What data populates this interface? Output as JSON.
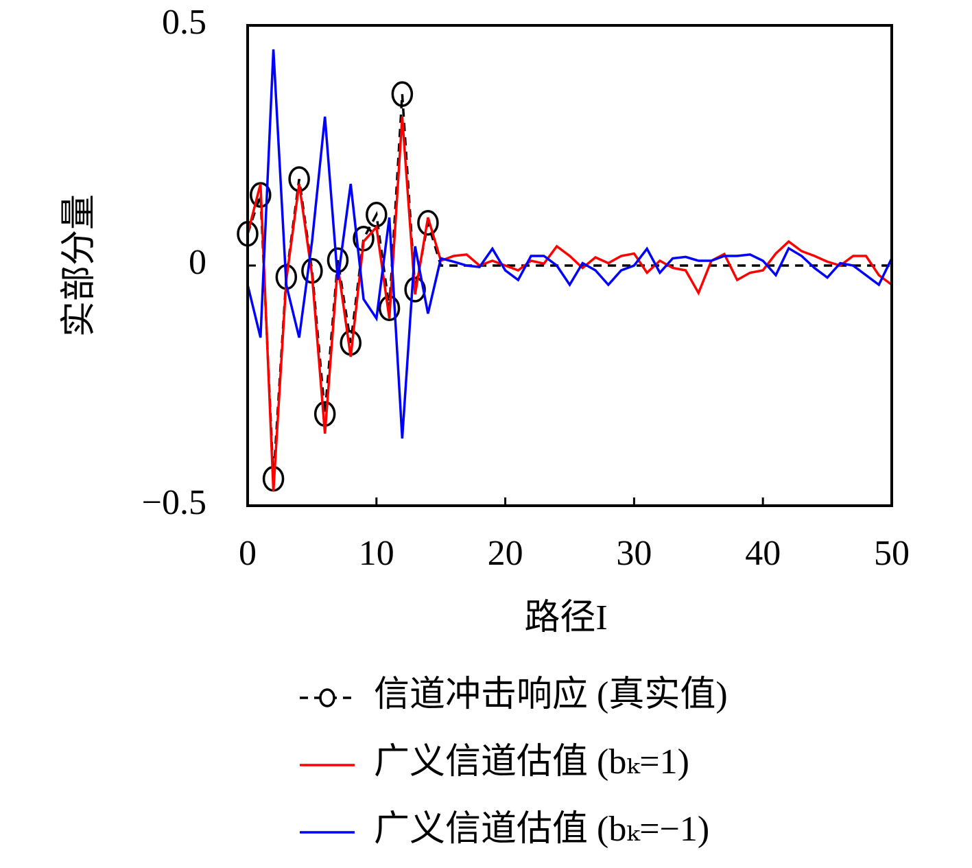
{
  "chart_data": {
    "type": "line",
    "xlabel": "路径I",
    "ylabel": "实部分量",
    "x": [
      0,
      1,
      2,
      3,
      4,
      5,
      6,
      7,
      8,
      9,
      10,
      11,
      12,
      13,
      14,
      15,
      16,
      17,
      18,
      19,
      20,
      21,
      22,
      23,
      24,
      25,
      26,
      27,
      28,
      29,
      30,
      31,
      32,
      33,
      34,
      35,
      36,
      37,
      38,
      39,
      40,
      41,
      42,
      43,
      44,
      45,
      46,
      47,
      48,
      49,
      50
    ],
    "series": [
      {
        "name": "信道冲击响应 (真实值)",
        "color": "#000000",
        "style": "dashed",
        "marker": "circle",
        "values": [
          0.066,
          0.147,
          -0.444,
          -0.024,
          0.18,
          -0.011,
          -0.309,
          0.011,
          -0.161,
          0.056,
          0.106,
          -0.089,
          0.357,
          -0.05,
          0.089,
          0,
          0,
          0,
          0,
          0,
          0,
          0,
          0,
          0,
          0,
          0,
          0,
          0,
          0,
          0,
          0,
          0,
          0,
          0,
          0,
          0,
          0,
          0,
          0,
          0,
          0,
          0,
          0,
          0,
          0,
          0,
          0,
          0,
          0,
          0,
          0
        ]
      },
      {
        "name": "广义信道估值 (bₖ=1)",
        "color": "#ff0000",
        "style": "solid",
        "values": [
          0.066,
          0.17,
          -0.47,
          -0.03,
          0.17,
          -0.02,
          -0.35,
          0.0,
          -0.19,
          0.05,
          0.08,
          -0.11,
          0.31,
          -0.06,
          0.1,
          0.01,
          0.02,
          0.023,
          0.0,
          0.01,
          0.0,
          -0.01,
          0.01,
          0.004,
          0.04,
          0.02,
          -0.005,
          0.017,
          0.005,
          0.02,
          0.025,
          -0.015,
          0.01,
          -0.005,
          -0.01,
          -0.057,
          0.01,
          0.024,
          -0.03,
          -0.015,
          -0.01,
          0.025,
          0.05,
          0.03,
          0.02,
          0.008,
          0.0,
          0.02,
          0.02,
          -0.02,
          -0.04
        ]
      },
      {
        "name": "广义信道估值 (bₖ=−1)",
        "color": "#0000ff",
        "style": "solid",
        "values": [
          -0.04,
          -0.15,
          0.45,
          -0.04,
          -0.15,
          0.05,
          0.31,
          -0.03,
          0.17,
          -0.07,
          -0.11,
          0.1,
          -0.36,
          0.04,
          -0.1,
          0.015,
          0.008,
          0.0,
          -0.003,
          0.035,
          -0.01,
          -0.03,
          0.02,
          0.02,
          0.0,
          -0.04,
          0.005,
          -0.01,
          -0.04,
          -0.01,
          0.0,
          0.035,
          -0.015,
          0.015,
          0.018,
          0.01,
          0.01,
          0.02,
          0.02,
          0.023,
          0.01,
          -0.02,
          0.036,
          0.02,
          -0.005,
          -0.025,
          0.005,
          0.0,
          -0.02,
          -0.04,
          0.015
        ]
      }
    ],
    "xlim": [
      0,
      50
    ],
    "xticks": [
      0,
      10,
      20,
      30,
      40,
      50
    ],
    "ylim": [
      -0.5,
      0.5
    ],
    "yticks": [
      {
        "value": -0.5,
        "label": "−0.5"
      },
      0,
      0.5
    ],
    "grid": false,
    "legend": "below"
  }
}
